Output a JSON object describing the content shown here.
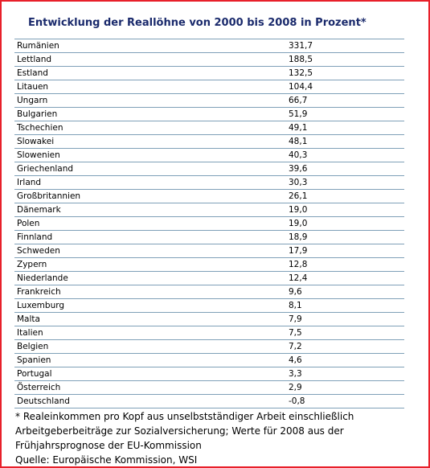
{
  "title": "Entwicklung der Reallöhne von 2000 bis 2008 in Prozent*",
  "rows": [
    {
      "country": "Rumänien",
      "value": "331,7"
    },
    {
      "country": "Lettland",
      "value": "188,5"
    },
    {
      "country": "Estland",
      "value": "132,5"
    },
    {
      "country": "Litauen",
      "value": "104,4"
    },
    {
      "country": "Ungarn",
      "value": "66,7"
    },
    {
      "country": "Bulgarien",
      "value": "51,9"
    },
    {
      "country": "Tschechien",
      "value": "49,1"
    },
    {
      "country": "Slowakei",
      "value": "48,1"
    },
    {
      "country": "Slowenien",
      "value": "40,3"
    },
    {
      "country": "Griechenland",
      "value": "39,6"
    },
    {
      "country": "Irland",
      "value": "30,3"
    },
    {
      "country": "Großbritannien",
      "value": "26,1"
    },
    {
      "country": "Dänemark",
      "value": "19,0"
    },
    {
      "country": "Polen",
      "value": "19,0"
    },
    {
      "country": "Finnland",
      "value": "18,9"
    },
    {
      "country": "Schweden",
      "value": "17,9"
    },
    {
      "country": "Zypern",
      "value": "12,8"
    },
    {
      "country": "Niederlande",
      "value": "12,4"
    },
    {
      "country": "Frankreich",
      "value": "9,6"
    },
    {
      "country": "Luxemburg",
      "value": "8,1"
    },
    {
      "country": "Malta",
      "value": "7,9"
    },
    {
      "country": "Italien",
      "value": "7,5"
    },
    {
      "country": "Belgien",
      "value": "7,2"
    },
    {
      "country": "Spanien",
      "value": "4,6"
    },
    {
      "country": "Portugal",
      "value": "3,3"
    },
    {
      "country": "Österreich",
      "value": "2,9"
    },
    {
      "country": "Deutschland",
      "value": "-0,8"
    }
  ],
  "footnote": {
    "line1": "* Realeinkommen pro Kopf aus unselbstständiger Arbeit einschließlich",
    "line2": "Arbeitgeberbeiträge zur Sozialversicherung; Werte für 2008 aus der",
    "line3": "Frühjahrsprognose der EU-Kommission",
    "source": "Quelle: Europäische Kommission, WSI"
  },
  "colors": {
    "frame": "#e8202a",
    "title": "#1a2a6c",
    "rule": "#7fa0b8"
  }
}
